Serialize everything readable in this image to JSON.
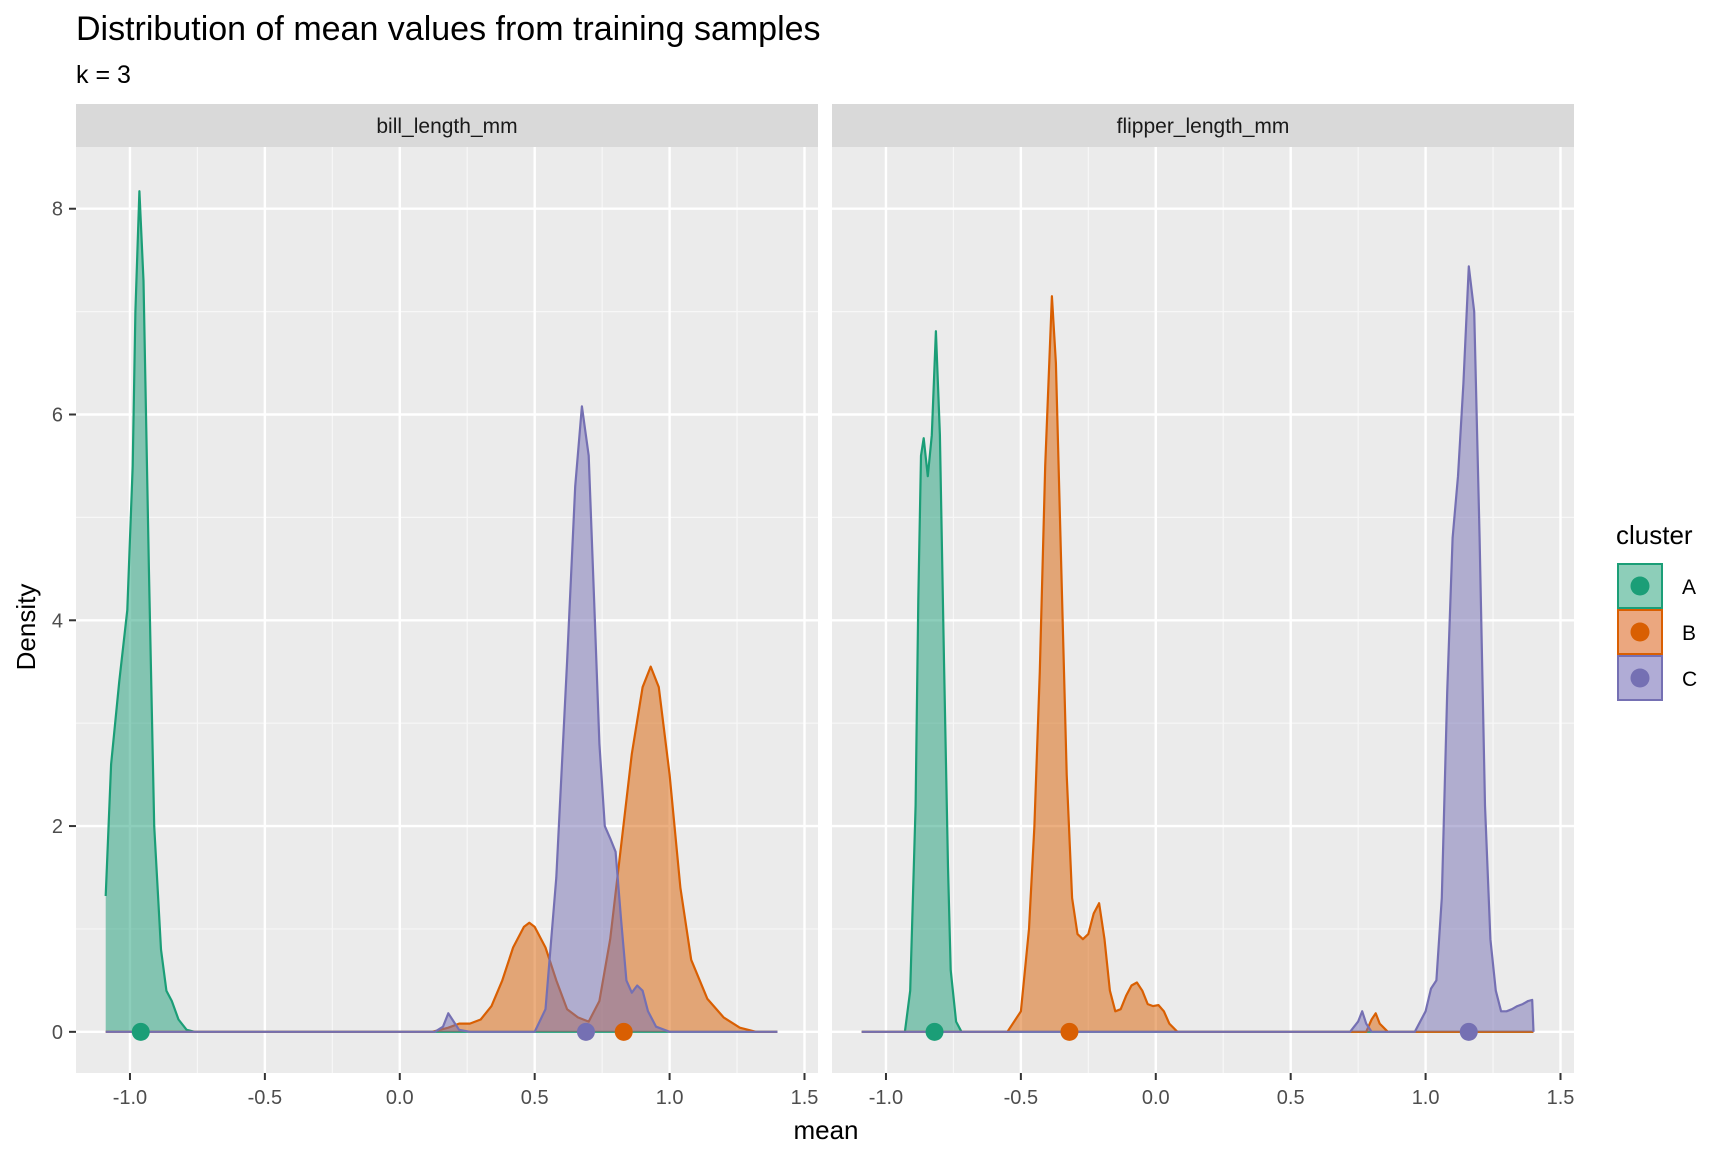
{
  "chart_data": {
    "type": "area",
    "title": "Distribution of mean values from training samples",
    "subtitle": "k = 3",
    "xlabel": "mean",
    "ylabel": "Density",
    "xlim": [
      -1.2,
      1.55
    ],
    "ylim": [
      -0.4,
      8.6
    ],
    "x_ticks": [
      -1.0,
      -0.5,
      0.0,
      0.5,
      1.0,
      1.5
    ],
    "x_tick_labels": [
      "-1.0",
      "-0.5",
      "0.0",
      "0.5",
      "1.0",
      "1.5"
    ],
    "y_ticks": [
      0,
      2,
      4,
      6,
      8
    ],
    "y_tick_labels": [
      "0",
      "2",
      "4",
      "6",
      "8"
    ],
    "grid": true,
    "legend": {
      "title": "cluster",
      "placement": "right",
      "entries": [
        {
          "label": "A",
          "color": "#1B9E77",
          "fill": "#8DCEB9"
        },
        {
          "label": "B",
          "color": "#D95F02",
          "fill": "#EBA77F"
        },
        {
          "label": "C",
          "color": "#7570B3",
          "fill": "#B0ACD6"
        }
      ]
    },
    "facets": [
      {
        "label": "bill_length_mm",
        "series": [
          {
            "name": "A",
            "mean_point": -0.96,
            "points": [
              [
                -1.09,
                1.32
              ],
              [
                -1.07,
                2.6
              ],
              [
                -1.04,
                3.4
              ],
              [
                -1.01,
                4.1
              ],
              [
                -0.99,
                5.5
              ],
              [
                -0.98,
                7.0
              ],
              [
                -0.965,
                8.17
              ],
              [
                -0.95,
                7.3
              ],
              [
                -0.93,
                4.5
              ],
              [
                -0.91,
                2.0
              ],
              [
                -0.885,
                0.8
              ],
              [
                -0.865,
                0.4
              ],
              [
                -0.845,
                0.3
              ],
              [
                -0.82,
                0.12
              ],
              [
                -0.79,
                0.02
              ],
              [
                -0.76,
                0.0
              ],
              [
                1.4,
                0.0
              ]
            ]
          },
          {
            "name": "B",
            "mean_point": 0.83,
            "points": [
              [
                -1.09,
                0.0
              ],
              [
                0.12,
                0.0
              ],
              [
                0.18,
                0.04
              ],
              [
                0.22,
                0.08
              ],
              [
                0.26,
                0.08
              ],
              [
                0.3,
                0.12
              ],
              [
                0.34,
                0.25
              ],
              [
                0.38,
                0.5
              ],
              [
                0.42,
                0.82
              ],
              [
                0.46,
                1.02
              ],
              [
                0.48,
                1.06
              ],
              [
                0.5,
                1.02
              ],
              [
                0.54,
                0.82
              ],
              [
                0.58,
                0.5
              ],
              [
                0.62,
                0.22
              ],
              [
                0.66,
                0.14
              ],
              [
                0.7,
                0.1
              ],
              [
                0.74,
                0.3
              ],
              [
                0.78,
                0.9
              ],
              [
                0.82,
                1.8
              ],
              [
                0.86,
                2.7
              ],
              [
                0.9,
                3.35
              ],
              [
                0.93,
                3.55
              ],
              [
                0.96,
                3.35
              ],
              [
                1.0,
                2.5
              ],
              [
                1.04,
                1.4
              ],
              [
                1.08,
                0.7
              ],
              [
                1.14,
                0.32
              ],
              [
                1.2,
                0.14
              ],
              [
                1.26,
                0.04
              ],
              [
                1.32,
                0.0
              ],
              [
                1.4,
                0.0
              ]
            ]
          },
          {
            "name": "C",
            "mean_point": 0.69,
            "points": [
              [
                -1.09,
                0.0
              ],
              [
                0.13,
                0.0
              ],
              [
                0.16,
                0.05
              ],
              [
                0.18,
                0.18
              ],
              [
                0.2,
                0.1
              ],
              [
                0.22,
                0.02
              ],
              [
                0.26,
                0.0
              ],
              [
                0.5,
                0.0
              ],
              [
                0.54,
                0.22
              ],
              [
                0.58,
                1.5
              ],
              [
                0.62,
                3.6
              ],
              [
                0.65,
                5.3
              ],
              [
                0.675,
                6.08
              ],
              [
                0.7,
                5.6
              ],
              [
                0.72,
                4.2
              ],
              [
                0.74,
                2.8
              ],
              [
                0.76,
                2.0
              ],
              [
                0.78,
                1.88
              ],
              [
                0.8,
                1.75
              ],
              [
                0.82,
                1.1
              ],
              [
                0.84,
                0.5
              ],
              [
                0.86,
                0.38
              ],
              [
                0.88,
                0.45
              ],
              [
                0.9,
                0.4
              ],
              [
                0.92,
                0.2
              ],
              [
                0.95,
                0.05
              ],
              [
                1.0,
                0.0
              ],
              [
                1.4,
                0.0
              ]
            ]
          }
        ]
      },
      {
        "label": "flipper_length_mm",
        "series": [
          {
            "name": "A",
            "mean_point": -0.82,
            "points": [
              [
                -1.09,
                0.0
              ],
              [
                -0.93,
                0.0
              ],
              [
                -0.91,
                0.4
              ],
              [
                -0.89,
                2.2
              ],
              [
                -0.88,
                4.2
              ],
              [
                -0.87,
                5.6
              ],
              [
                -0.86,
                5.77
              ],
              [
                -0.845,
                5.4
              ],
              [
                -0.83,
                5.8
              ],
              [
                -0.815,
                6.81
              ],
              [
                -0.8,
                5.8
              ],
              [
                -0.785,
                3.6
              ],
              [
                -0.77,
                1.6
              ],
              [
                -0.76,
                0.6
              ],
              [
                -0.74,
                0.1
              ],
              [
                -0.72,
                0.0
              ],
              [
                1.4,
                0.0
              ]
            ]
          },
          {
            "name": "B",
            "mean_point": -0.32,
            "points": [
              [
                -1.09,
                0.0
              ],
              [
                -0.55,
                0.0
              ],
              [
                -0.5,
                0.2
              ],
              [
                -0.47,
                1.0
              ],
              [
                -0.45,
                2.0
              ],
              [
                -0.43,
                3.5
              ],
              [
                -0.41,
                5.5
              ],
              [
                -0.385,
                7.15
              ],
              [
                -0.37,
                6.5
              ],
              [
                -0.35,
                4.5
              ],
              [
                -0.33,
                2.5
              ],
              [
                -0.31,
                1.3
              ],
              [
                -0.29,
                0.95
              ],
              [
                -0.27,
                0.9
              ],
              [
                -0.25,
                0.95
              ],
              [
                -0.23,
                1.15
              ],
              [
                -0.21,
                1.25
              ],
              [
                -0.19,
                0.9
              ],
              [
                -0.17,
                0.4
              ],
              [
                -0.15,
                0.2
              ],
              [
                -0.13,
                0.22
              ],
              [
                -0.11,
                0.35
              ],
              [
                -0.09,
                0.45
              ],
              [
                -0.07,
                0.48
              ],
              [
                -0.05,
                0.4
              ],
              [
                -0.03,
                0.27
              ],
              [
                -0.01,
                0.25
              ],
              [
                0.01,
                0.26
              ],
              [
                0.03,
                0.2
              ],
              [
                0.05,
                0.08
              ],
              [
                0.08,
                0.0
              ],
              [
                0.78,
                0.0
              ],
              [
                0.8,
                0.12
              ],
              [
                0.815,
                0.18
              ],
              [
                0.83,
                0.08
              ],
              [
                0.86,
                0.0
              ],
              [
                1.4,
                0.0
              ]
            ]
          },
          {
            "name": "C",
            "mean_point": 1.16,
            "points": [
              [
                -1.09,
                0.0
              ],
              [
                0.72,
                0.0
              ],
              [
                0.75,
                0.1
              ],
              [
                0.765,
                0.2
              ],
              [
                0.78,
                0.08
              ],
              [
                0.8,
                0.0
              ],
              [
                0.96,
                0.0
              ],
              [
                1.0,
                0.2
              ],
              [
                1.02,
                0.42
              ],
              [
                1.04,
                0.5
              ],
              [
                1.06,
                1.3
              ],
              [
                1.08,
                3.3
              ],
              [
                1.1,
                4.8
              ],
              [
                1.12,
                5.4
              ],
              [
                1.14,
                6.3
              ],
              [
                1.16,
                7.44
              ],
              [
                1.18,
                7.0
              ],
              [
                1.2,
                4.8
              ],
              [
                1.22,
                2.2
              ],
              [
                1.24,
                0.9
              ],
              [
                1.26,
                0.4
              ],
              [
                1.28,
                0.2
              ],
              [
                1.3,
                0.2
              ],
              [
                1.32,
                0.22
              ],
              [
                1.34,
                0.25
              ],
              [
                1.36,
                0.27
              ],
              [
                1.38,
                0.3
              ],
              [
                1.395,
                0.31
              ],
              [
                1.4,
                0.0
              ]
            ]
          }
        ]
      }
    ]
  }
}
